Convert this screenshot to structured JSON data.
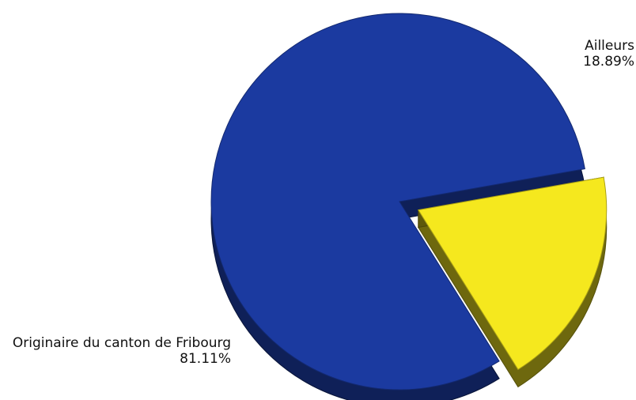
{
  "chart_data": {
    "type": "pie",
    "slices": [
      {
        "label": "Originaire du canton de Fribourg",
        "value_label": "81.11%",
        "value": 81.11,
        "color": "#1b3aa0"
      },
      {
        "label": "Ailleurs",
        "value_label": "18.89%",
        "value": 18.89,
        "color": "#f5e81e"
      }
    ],
    "exploded": [
      "Ailleurs"
    ],
    "style": "3d",
    "legend": "none"
  }
}
